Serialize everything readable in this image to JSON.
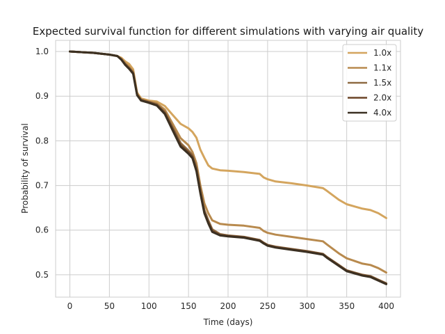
{
  "chart_data": {
    "type": "line",
    "title": "Expected survival function for different simulations with varying air quality",
    "xlabel": "Time (days)",
    "ylabel": "Probability of survival",
    "xlim": [
      -18,
      418
    ],
    "ylim": [
      0.45,
      1.025
    ],
    "xticks": [
      0,
      50,
      100,
      150,
      200,
      250,
      300,
      350,
      400
    ],
    "yticks": [
      0.5,
      0.6,
      0.7,
      0.8,
      0.9,
      1.0
    ],
    "xtick_labels": [
      "0",
      "50",
      "100",
      "150",
      "200",
      "250",
      "300",
      "350",
      "400"
    ],
    "ytick_labels": [
      "0.5",
      "0.6",
      "0.7",
      "0.8",
      "0.9",
      "1.0"
    ],
    "grid": true,
    "legend_position": "top-right",
    "series": [
      {
        "name": "1.0x",
        "color": "#d4a55e",
        "x": [
          0,
          30,
          50,
          60,
          65,
          70,
          75,
          80,
          85,
          90,
          100,
          110,
          120,
          130,
          140,
          150,
          155,
          160,
          165,
          170,
          175,
          180,
          190,
          200,
          220,
          240,
          245,
          250,
          260,
          280,
          300,
          320,
          325,
          340,
          350,
          370,
          380,
          390,
          400
        ],
        "y": [
          1.0,
          0.997,
          0.993,
          0.99,
          0.986,
          0.978,
          0.972,
          0.96,
          0.908,
          0.895,
          0.89,
          0.888,
          0.878,
          0.858,
          0.838,
          0.828,
          0.82,
          0.807,
          0.78,
          0.762,
          0.745,
          0.738,
          0.734,
          0.733,
          0.73,
          0.726,
          0.718,
          0.714,
          0.709,
          0.705,
          0.7,
          0.694,
          0.688,
          0.668,
          0.658,
          0.648,
          0.645,
          0.638,
          0.627
        ]
      },
      {
        "name": "1.1x",
        "color": "#b88a4e",
        "x": [
          0,
          30,
          50,
          60,
          65,
          70,
          75,
          80,
          85,
          90,
          100,
          110,
          120,
          130,
          140,
          150,
          155,
          160,
          165,
          170,
          175,
          180,
          190,
          200,
          220,
          240,
          245,
          250,
          260,
          280,
          300,
          320,
          325,
          340,
          350,
          370,
          380,
          390,
          400
        ],
        "y": [
          1.0,
          0.997,
          0.993,
          0.99,
          0.984,
          0.974,
          0.966,
          0.955,
          0.905,
          0.893,
          0.888,
          0.884,
          0.87,
          0.838,
          0.806,
          0.79,
          0.775,
          0.75,
          0.7,
          0.66,
          0.638,
          0.622,
          0.614,
          0.612,
          0.61,
          0.605,
          0.598,
          0.594,
          0.59,
          0.585,
          0.58,
          0.575,
          0.568,
          0.548,
          0.537,
          0.525,
          0.522,
          0.515,
          0.505
        ]
      },
      {
        "name": "1.5x",
        "color": "#8e6a42",
        "x": [
          0,
          30,
          50,
          60,
          65,
          70,
          75,
          80,
          85,
          90,
          100,
          110,
          120,
          130,
          140,
          150,
          155,
          160,
          165,
          170,
          175,
          180,
          190,
          200,
          220,
          240,
          245,
          250,
          260,
          280,
          300,
          320,
          325,
          340,
          350,
          370,
          380,
          390,
          400
        ],
        "y": [
          1.0,
          0.997,
          0.993,
          0.99,
          0.983,
          0.972,
          0.963,
          0.953,
          0.904,
          0.892,
          0.887,
          0.882,
          0.865,
          0.83,
          0.795,
          0.778,
          0.768,
          0.74,
          0.69,
          0.645,
          0.622,
          0.602,
          0.591,
          0.588,
          0.585,
          0.578,
          0.572,
          0.567,
          0.563,
          0.558,
          0.553,
          0.547,
          0.54,
          0.522,
          0.51,
          0.5,
          0.497,
          0.489,
          0.481
        ]
      },
      {
        "name": "2.0x",
        "color": "#6b4426",
        "x": [
          0,
          30,
          50,
          60,
          65,
          70,
          75,
          80,
          85,
          90,
          100,
          110,
          120,
          130,
          140,
          150,
          155,
          160,
          165,
          170,
          175,
          180,
          190,
          200,
          220,
          240,
          245,
          250,
          260,
          280,
          300,
          320,
          325,
          340,
          350,
          370,
          380,
          390,
          400
        ],
        "y": [
          1.0,
          0.997,
          0.993,
          0.99,
          0.982,
          0.971,
          0.962,
          0.951,
          0.903,
          0.891,
          0.886,
          0.88,
          0.862,
          0.826,
          0.79,
          0.774,
          0.764,
          0.735,
          0.685,
          0.64,
          0.617,
          0.598,
          0.589,
          0.587,
          0.584,
          0.577,
          0.571,
          0.566,
          0.562,
          0.557,
          0.552,
          0.546,
          0.539,
          0.521,
          0.509,
          0.499,
          0.496,
          0.488,
          0.48
        ]
      },
      {
        "name": "4.0x",
        "color": "#3b3022",
        "x": [
          0,
          30,
          50,
          60,
          65,
          70,
          75,
          80,
          85,
          90,
          100,
          110,
          120,
          130,
          140,
          150,
          155,
          160,
          165,
          170,
          175,
          180,
          190,
          200,
          220,
          240,
          245,
          250,
          260,
          280,
          300,
          320,
          325,
          340,
          350,
          370,
          380,
          390,
          400
        ],
        "y": [
          1.0,
          0.997,
          0.993,
          0.99,
          0.982,
          0.97,
          0.961,
          0.95,
          0.902,
          0.89,
          0.885,
          0.879,
          0.86,
          0.823,
          0.787,
          0.771,
          0.761,
          0.732,
          0.682,
          0.638,
          0.615,
          0.596,
          0.588,
          0.586,
          0.583,
          0.576,
          0.57,
          0.565,
          0.561,
          0.556,
          0.551,
          0.545,
          0.538,
          0.52,
          0.508,
          0.498,
          0.495,
          0.487,
          0.479
        ]
      }
    ]
  }
}
